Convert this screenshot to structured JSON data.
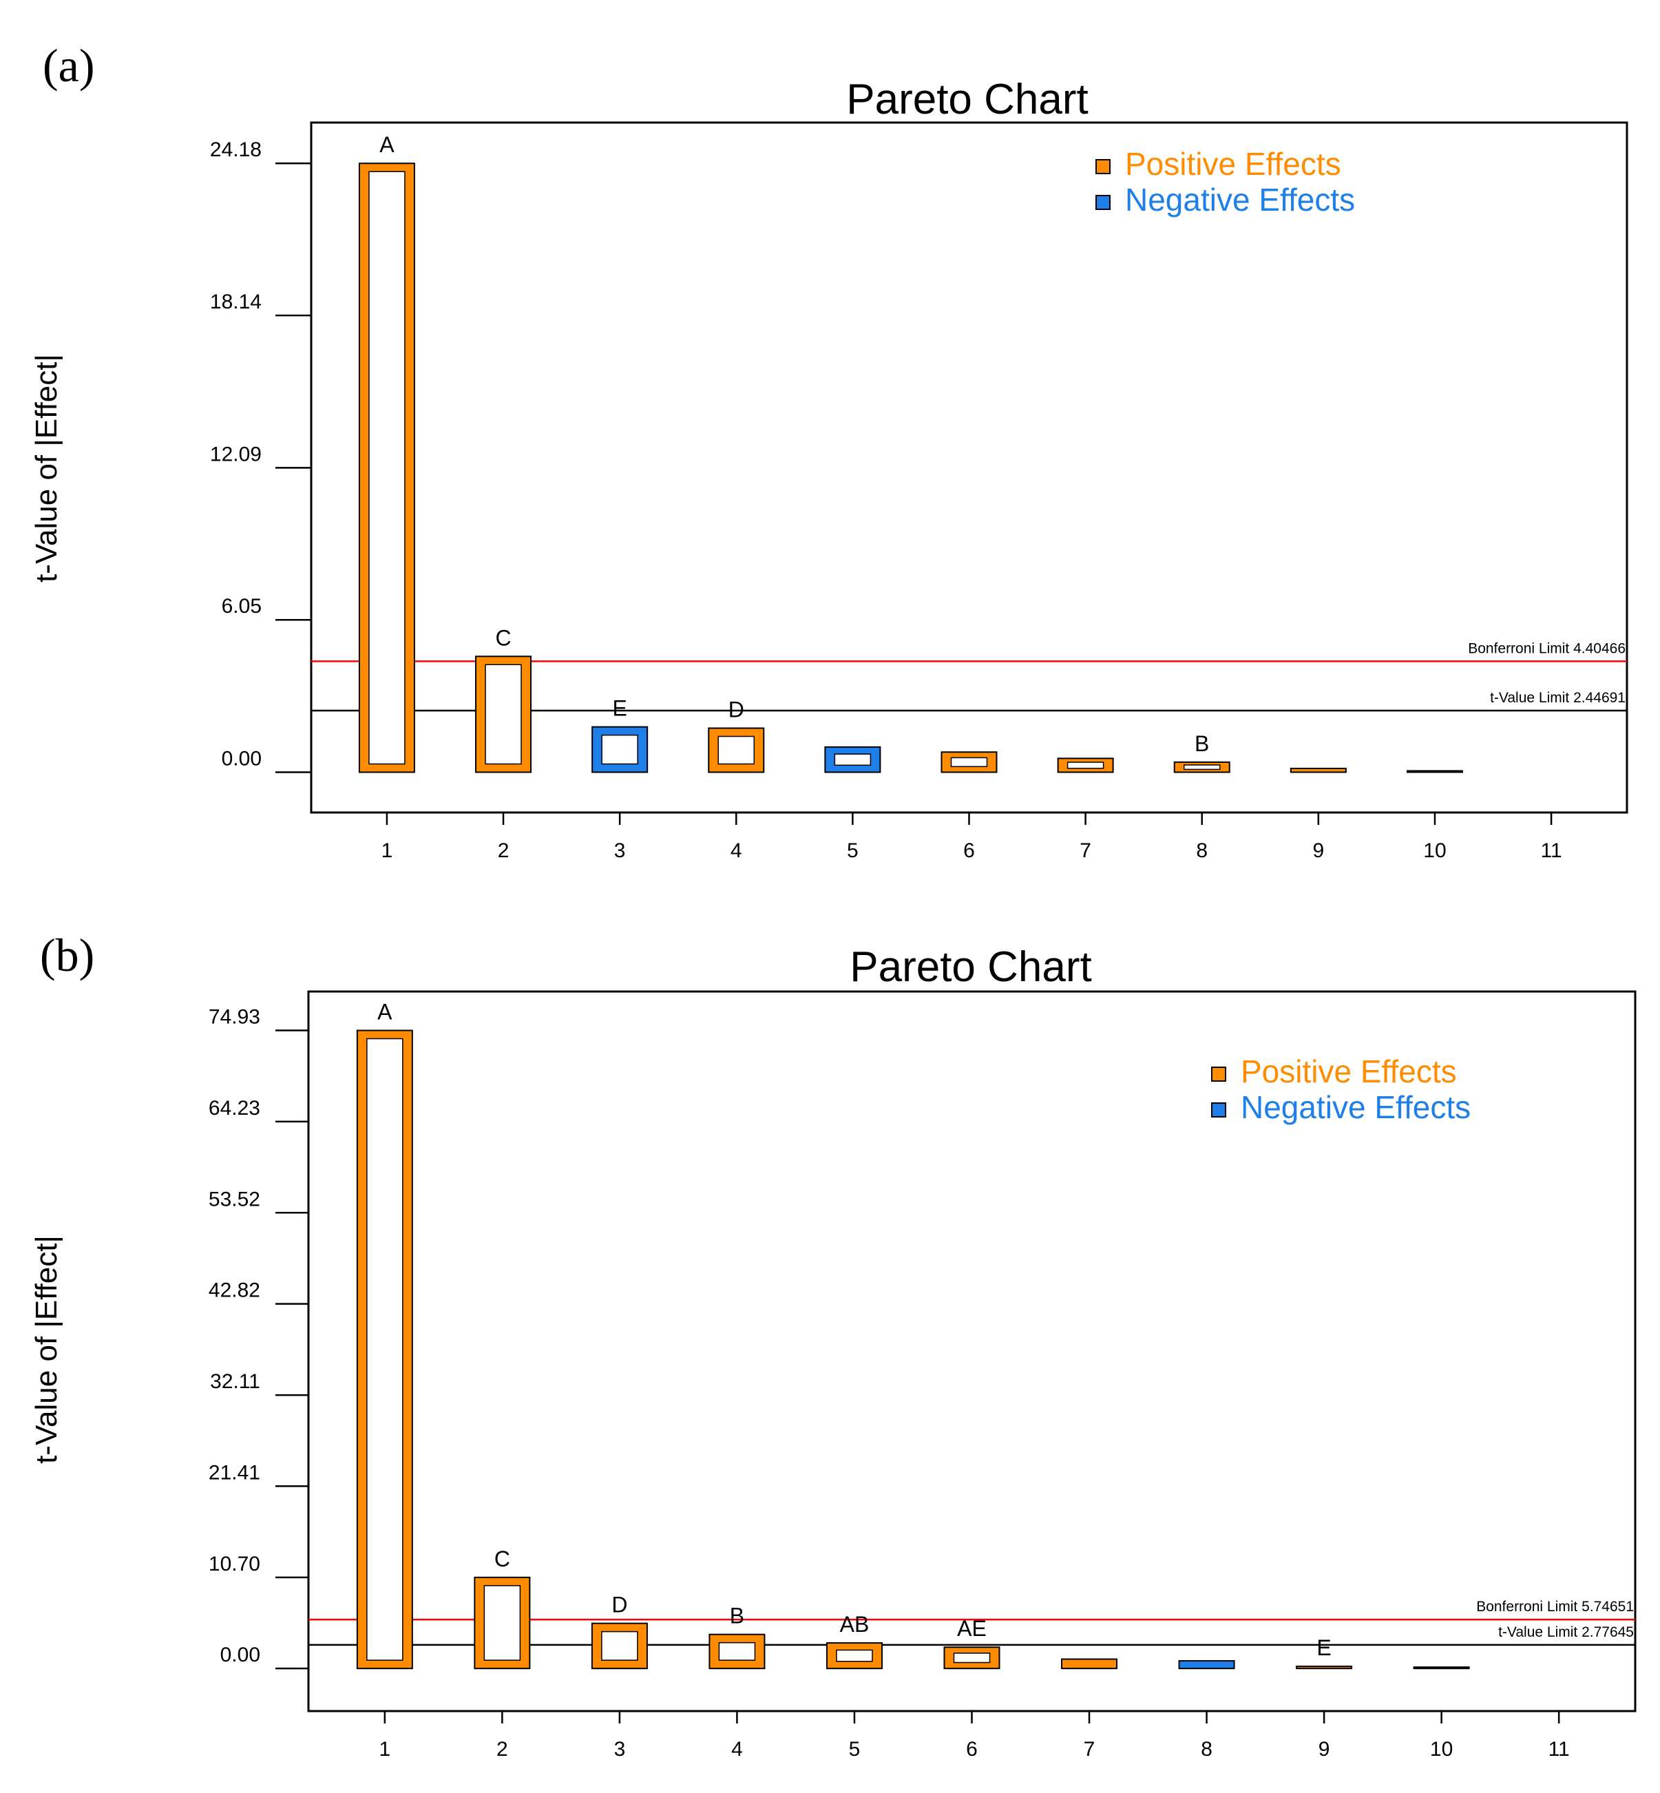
{
  "colors": {
    "positive": "#FF8C00",
    "negative": "#1E7FE8",
    "bonferroni_line": "#FF0000",
    "tvalue_line": "#000000",
    "axis": "#000000"
  },
  "chart_data": [
    {
      "type": "bar",
      "panel_label": "(a)",
      "title": "Pareto Chart",
      "ylabel": "t-Value of |Effect|",
      "xlabel": "",
      "ylim": [
        -1.6,
        25.8
      ],
      "xlim": [
        0.35,
        11.65
      ],
      "y_ticks": [
        "24.18",
        "18.14",
        "12.09",
        "6.05",
        "0.00"
      ],
      "y_tick_values": [
        24.18,
        18.14,
        12.09,
        6.05,
        0.0
      ],
      "x_ticks": [
        "1",
        "2",
        "3",
        "4",
        "5",
        "6",
        "7",
        "8",
        "9",
        "10",
        "11"
      ],
      "bars": [
        {
          "rank": 1,
          "value": 24.18,
          "sign": "positive",
          "label": "A"
        },
        {
          "rank": 2,
          "value": 4.6,
          "sign": "positive",
          "label": "C"
        },
        {
          "rank": 3,
          "value": 1.8,
          "sign": "negative",
          "label": "E"
        },
        {
          "rank": 4,
          "value": 1.75,
          "sign": "positive",
          "label": "D"
        },
        {
          "rank": 5,
          "value": 1.0,
          "sign": "negative",
          "label": ""
        },
        {
          "rank": 6,
          "value": 0.8,
          "sign": "positive",
          "label": ""
        },
        {
          "rank": 7,
          "value": 0.55,
          "sign": "positive",
          "label": ""
        },
        {
          "rank": 8,
          "value": 0.4,
          "sign": "positive",
          "label": "B"
        },
        {
          "rank": 9,
          "value": 0.15,
          "sign": "positive",
          "label": ""
        },
        {
          "rank": 10,
          "value": 0.05,
          "sign": "negative",
          "label": ""
        }
      ],
      "limits": [
        {
          "name": "Bonferroni Limit",
          "label": "Bonferroni Limit 4.40466",
          "value": 4.40466,
          "kind": "bonferroni"
        },
        {
          "name": "t-Value Limit",
          "label": "t-Value Limit 2.44691",
          "value": 2.44691,
          "kind": "tvalue"
        }
      ],
      "legend": [
        {
          "label": "Positive Effects",
          "sign": "positive"
        },
        {
          "label": "Negative Effects",
          "sign": "negative"
        }
      ],
      "legend_position": "top-right"
    },
    {
      "type": "bar",
      "panel_label": "(b)",
      "title": "Pareto Chart",
      "ylabel": "t-Value of |Effect|",
      "xlabel": "",
      "ylim": [
        -5.0,
        79.5
      ],
      "xlim": [
        0.35,
        11.65
      ],
      "y_ticks": [
        "74.93",
        "64.23",
        "53.52",
        "42.82",
        "32.11",
        "21.41",
        "10.70",
        "0.00"
      ],
      "y_tick_values": [
        74.93,
        64.23,
        53.52,
        42.82,
        32.11,
        21.41,
        10.7,
        0.0
      ],
      "x_ticks": [
        "1",
        "2",
        "3",
        "4",
        "5",
        "6",
        "7",
        "8",
        "9",
        "10",
        "11"
      ],
      "bars": [
        {
          "rank": 1,
          "value": 74.93,
          "sign": "positive",
          "label": "A"
        },
        {
          "rank": 2,
          "value": 10.7,
          "sign": "positive",
          "label": "C"
        },
        {
          "rank": 3,
          "value": 5.3,
          "sign": "positive",
          "label": "D"
        },
        {
          "rank": 4,
          "value": 4.0,
          "sign": "positive",
          "label": "B"
        },
        {
          "rank": 5,
          "value": 3.0,
          "sign": "positive",
          "label": "AB"
        },
        {
          "rank": 6,
          "value": 2.5,
          "sign": "positive",
          "label": "AE"
        },
        {
          "rank": 7,
          "value": 1.1,
          "sign": "positive",
          "label": ""
        },
        {
          "rank": 8,
          "value": 0.9,
          "sign": "negative",
          "label": ""
        },
        {
          "rank": 9,
          "value": 0.25,
          "sign": "positive",
          "label": "E"
        },
        {
          "rank": 10,
          "value": 0.08,
          "sign": "positive",
          "label": ""
        }
      ],
      "limits": [
        {
          "name": "Bonferroni Limit",
          "label": "Bonferroni Limit 5.74651",
          "value": 5.74651,
          "kind": "bonferroni"
        },
        {
          "name": "t-Value Limit",
          "label": "t-Value Limit 2.77645",
          "value": 2.77645,
          "kind": "tvalue"
        }
      ],
      "legend": [
        {
          "label": "Positive Effects",
          "sign": "positive"
        },
        {
          "label": "Negative Effects",
          "sign": "negative"
        }
      ],
      "legend_position": "top-right"
    }
  ]
}
